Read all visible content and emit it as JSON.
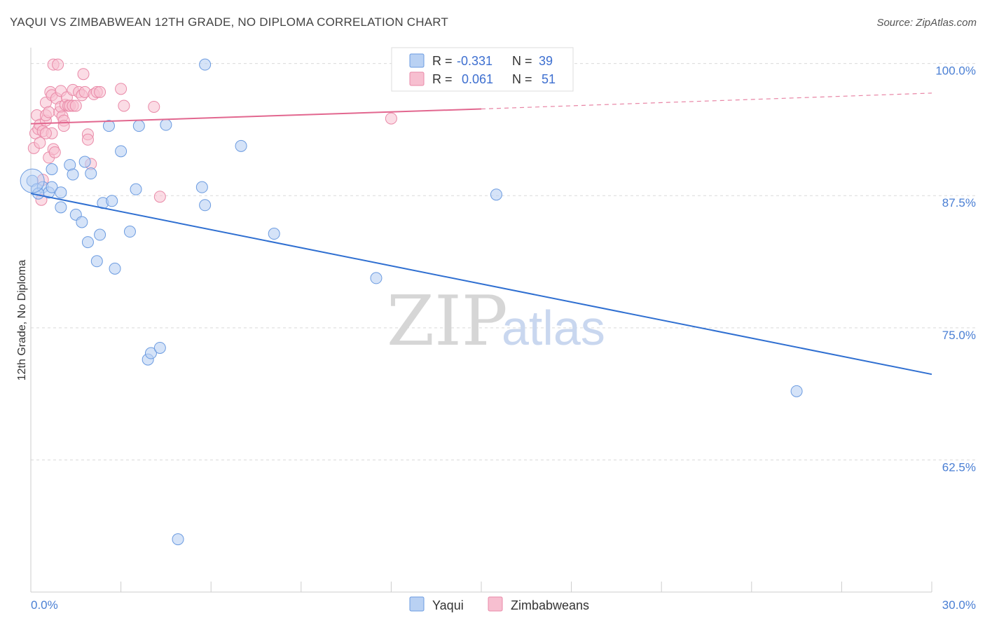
{
  "title": "YAQUI VS ZIMBABWEAN 12TH GRADE, NO DIPLOMA CORRELATION CHART",
  "source": "Source: ZipAtlas.com",
  "watermark": {
    "zip": "ZIP",
    "atlas": "atlas"
  },
  "colors": {
    "yaqui_fill": "#b9d1f3",
    "yaqui_stroke": "#6b9be0",
    "yaqui_line": "#2f6fd1",
    "zim_fill": "#f7bfd0",
    "zim_stroke": "#e98aa8",
    "zim_line": "#e2678f",
    "grid": "#d9d9d9",
    "axis_text": "#4a7fd4"
  },
  "legend": {
    "r_label": "R =",
    "n_label": "N =",
    "yaqui": {
      "r": "-0.331",
      "n": "39"
    },
    "zim": {
      "r": "0.061",
      "n": "51"
    }
  },
  "chart_data": {
    "type": "scatter",
    "title": "YAQUI VS ZIMBABWEAN 12TH GRADE, NO DIPLOMA CORRELATION CHART",
    "xlabel": "",
    "ylabel": "12th Grade, No Diploma",
    "xlim": [
      0,
      30
    ],
    "ylim": [
      50,
      101.5
    ],
    "x_tick_labels": [
      "0.0%",
      "30.0%"
    ],
    "y_ticks": [
      62.5,
      75.0,
      87.5,
      100.0
    ],
    "y_tick_labels": [
      "62.5%",
      "75.0%",
      "87.5%",
      "100.0%"
    ],
    "legend_position": "top-center",
    "series": [
      {
        "name": "Yaqui",
        "points": [
          [
            0.05,
            88.9
          ],
          [
            0.2,
            88.1
          ],
          [
            0.4,
            88.3
          ],
          [
            0.6,
            87.8
          ],
          [
            0.7,
            90.0
          ],
          [
            0.7,
            88.3
          ],
          [
            1.0,
            87.8
          ],
          [
            1.0,
            86.4
          ],
          [
            1.3,
            90.4
          ],
          [
            1.4,
            89.5
          ],
          [
            1.5,
            85.7
          ],
          [
            1.7,
            85.0
          ],
          [
            1.8,
            90.7
          ],
          [
            1.9,
            83.1
          ],
          [
            2.0,
            89.6
          ],
          [
            2.2,
            81.3
          ],
          [
            2.3,
            83.8
          ],
          [
            2.4,
            86.8
          ],
          [
            2.6,
            94.1
          ],
          [
            2.7,
            87.0
          ],
          [
            2.8,
            80.6
          ],
          [
            3.0,
            91.7
          ],
          [
            3.3,
            84.1
          ],
          [
            3.5,
            88.1
          ],
          [
            3.6,
            94.1
          ],
          [
            3.9,
            72.0
          ],
          [
            4.0,
            72.6
          ],
          [
            4.3,
            73.1
          ],
          [
            4.5,
            94.2
          ],
          [
            4.9,
            55.0
          ],
          [
            5.7,
            88.3
          ],
          [
            5.8,
            86.6
          ],
          [
            5.8,
            99.9
          ],
          [
            7.0,
            92.2
          ],
          [
            8.1,
            83.9
          ],
          [
            11.5,
            79.7
          ],
          [
            15.5,
            87.6
          ],
          [
            25.5,
            69.0
          ],
          [
            0.25,
            87.7
          ]
        ],
        "trend": {
          "x": [
            0,
            30
          ],
          "y": [
            87.7,
            70.6
          ]
        }
      },
      {
        "name": "Zimbabweans",
        "points": [
          [
            0.1,
            92.0
          ],
          [
            0.15,
            93.4
          ],
          [
            0.2,
            95.1
          ],
          [
            0.25,
            93.8
          ],
          [
            0.3,
            94.2
          ],
          [
            0.3,
            92.5
          ],
          [
            0.35,
            87.1
          ],
          [
            0.4,
            89.0
          ],
          [
            0.4,
            93.6
          ],
          [
            0.5,
            94.6
          ],
          [
            0.5,
            95.1
          ],
          [
            0.5,
            96.3
          ],
          [
            0.6,
            95.4
          ],
          [
            0.6,
            91.1
          ],
          [
            0.65,
            97.3
          ],
          [
            0.7,
            97.0
          ],
          [
            0.7,
            93.4
          ],
          [
            0.75,
            91.9
          ],
          [
            0.75,
            99.9
          ],
          [
            0.8,
            91.6
          ],
          [
            0.85,
            96.7
          ],
          [
            0.9,
            99.9
          ],
          [
            0.95,
            95.4
          ],
          [
            1.0,
            97.4
          ],
          [
            1.0,
            95.9
          ],
          [
            1.05,
            95.0
          ],
          [
            1.1,
            94.6
          ],
          [
            1.1,
            94.1
          ],
          [
            1.15,
            96.1
          ],
          [
            1.2,
            96.8
          ],
          [
            1.25,
            96.0
          ],
          [
            1.3,
            96.0
          ],
          [
            1.4,
            96.0
          ],
          [
            1.4,
            97.5
          ],
          [
            1.5,
            96.0
          ],
          [
            1.6,
            97.3
          ],
          [
            1.7,
            97.0
          ],
          [
            1.75,
            99.0
          ],
          [
            1.8,
            97.3
          ],
          [
            1.9,
            93.3
          ],
          [
            1.9,
            92.8
          ],
          [
            2.0,
            90.5
          ],
          [
            2.1,
            97.1
          ],
          [
            2.2,
            97.3
          ],
          [
            2.3,
            97.3
          ],
          [
            3.0,
            97.6
          ],
          [
            3.1,
            96.0
          ],
          [
            4.1,
            95.9
          ],
          [
            4.3,
            87.4
          ],
          [
            12.0,
            94.8
          ],
          [
            0.5,
            93.4
          ]
        ],
        "trend": {
          "x": [
            0,
            15
          ],
          "y": [
            94.3,
            95.7
          ]
        },
        "trend_dashed": {
          "x": [
            15,
            30
          ],
          "y": [
            95.7,
            97.2
          ]
        }
      }
    ]
  },
  "bottom_legend": [
    "Yaqui",
    "Zimbabweans"
  ]
}
